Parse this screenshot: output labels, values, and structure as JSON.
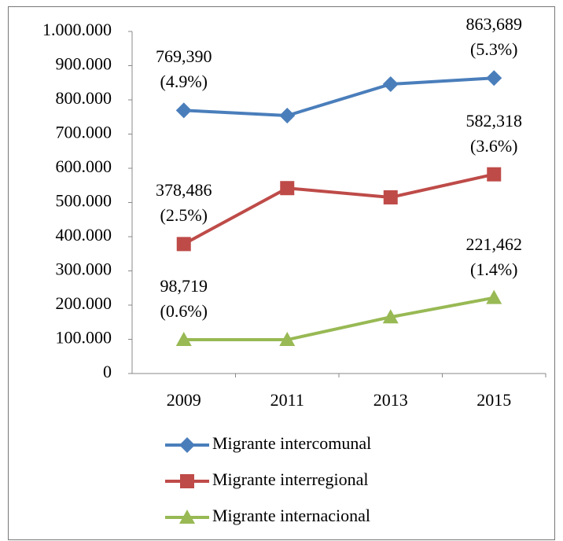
{
  "chart_data": {
    "type": "line",
    "categories": [
      "2009",
      "2011",
      "2013",
      "2015"
    ],
    "ylim": [
      0,
      1000000
    ],
    "yticks": [
      0,
      {
        "value": 100000,
        "label": "100.000"
      },
      {
        "value": 200000,
        "label": "200.000"
      },
      {
        "value": 300000,
        "label": "300.000"
      },
      {
        "value": 400000,
        "label": "400.000"
      },
      {
        "value": 500000,
        "label": "500.000"
      },
      {
        "value": 600000,
        "label": "600.000"
      },
      {
        "value": 700000,
        "label": "700.000"
      },
      {
        "value": 800000,
        "label": "800.000"
      },
      {
        "value": 900000,
        "label": "900.000"
      },
      {
        "value": 1000000,
        "label": "1.000.000"
      }
    ],
    "grid": false,
    "legend": "bottom",
    "series": [
      {
        "name": "Migrante intercomunal",
        "color": "#4a7ebb",
        "marker": "diamond",
        "values": [
          769390,
          754000,
          846000,
          863689
        ],
        "value_labels": [
          "769,390\n(4.9%)",
          null,
          null,
          "863,689\n(5.3%)"
        ]
      },
      {
        "name": "Migrante interregional",
        "color": "#be4b48",
        "marker": "square",
        "values": [
          378486,
          542000,
          515000,
          582318
        ],
        "value_labels": [
          "378,486\n(2.5%)",
          null,
          null,
          "582,318\n(3.6%)"
        ]
      },
      {
        "name": "Migrante internacional",
        "color": "#98b954",
        "marker": "triangle",
        "values": [
          98719,
          98719,
          165000,
          221462
        ],
        "value_labels": [
          "98,719\n(0.6%)",
          null,
          null,
          "221,462\n(1.4%)"
        ]
      }
    ]
  }
}
